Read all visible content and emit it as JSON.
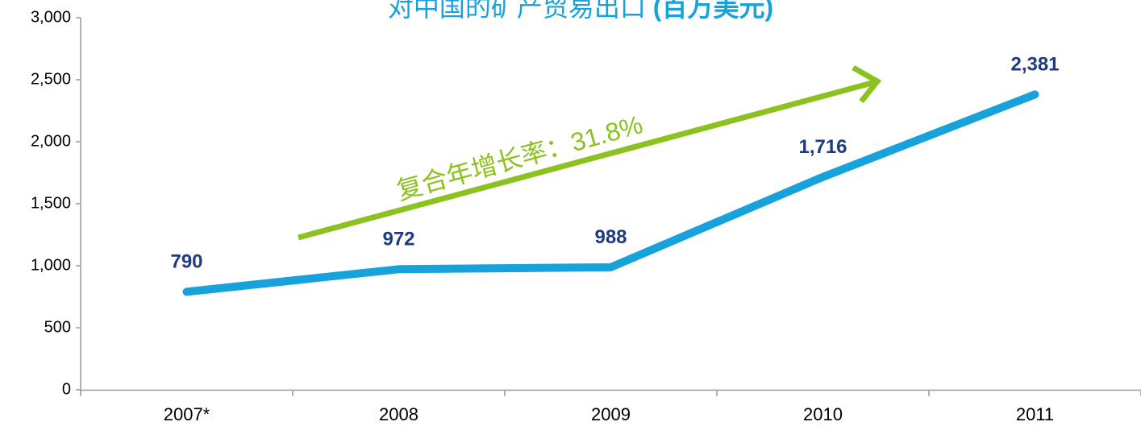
{
  "chart_data": {
    "type": "line",
    "title": "对中国的矿产贸易出口",
    "title_unit": "(百万美元)",
    "annotation": "复合年增长率：31.8%",
    "categories": [
      "2007*",
      "2008",
      "2009",
      "2010",
      "2011"
    ],
    "series": [
      {
        "name": "对中国的矿产贸易出口",
        "color": "#17a2dc",
        "values": [
          790,
          972,
          988,
          1716,
          2381
        ],
        "value_labels": [
          "790",
          "972",
          "988",
          "1,716",
          "2,381"
        ]
      }
    ],
    "ylim": [
      0,
      3000
    ],
    "yticks": [
      0,
      500,
      {
        "value": 1000,
        "label": "1,000"
      },
      {
        "value": 1500,
        "label": "1,500"
      },
      {
        "value": 2000,
        "label": "2,000"
      },
      {
        "value": 2500,
        "label": "2,500"
      },
      {
        "value": 3000,
        "label": "3,000"
      }
    ],
    "arrow_color": "#8cc21f",
    "label_color": "#1f3b80"
  }
}
